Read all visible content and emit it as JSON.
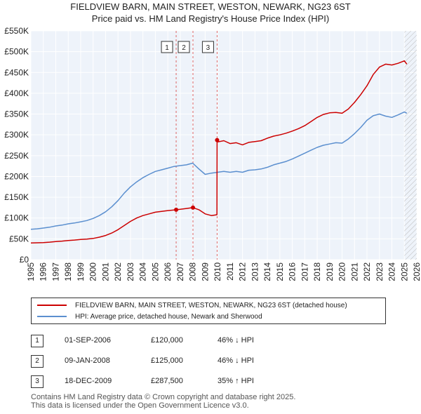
{
  "title_line1": "FIELDVIEW BARN, MAIN STREET, WESTON, NEWARK, NG23 6ST",
  "title_line2": "Price paid vs. HM Land Registry's House Price Index (HPI)",
  "chart_data": {
    "type": "line",
    "ylim": [
      0,
      550000
    ],
    "xlim": [
      1995,
      2026
    ],
    "yticks": [
      {
        "v": 0,
        "label": "£0"
      },
      {
        "v": 50000,
        "label": "£50K"
      },
      {
        "v": 100000,
        "label": "£100K"
      },
      {
        "v": 150000,
        "label": "£150K"
      },
      {
        "v": 200000,
        "label": "£200K"
      },
      {
        "v": 250000,
        "label": "£250K"
      },
      {
        "v": 300000,
        "label": "£300K"
      },
      {
        "v": 350000,
        "label": "£350K"
      },
      {
        "v": 400000,
        "label": "£400K"
      },
      {
        "v": 450000,
        "label": "£450K"
      },
      {
        "v": 500000,
        "label": "£500K"
      },
      {
        "v": 550000,
        "label": "£550K"
      }
    ],
    "xticks": [
      1995,
      1996,
      1997,
      1998,
      1999,
      2000,
      2001,
      2002,
      2003,
      2004,
      2005,
      2006,
      2007,
      2008,
      2009,
      2010,
      2011,
      2012,
      2013,
      2014,
      2015,
      2016,
      2017,
      2018,
      2019,
      2020,
      2021,
      2022,
      2023,
      2024,
      2025,
      2026
    ],
    "hatch_from": 2025.0,
    "series": [
      {
        "name": "FIELDVIEW BARN, MAIN STREET, WESTON, NEWARK, NG23 6ST (detached house)",
        "color": "#cc0000",
        "x": [
          1995.0,
          1995.5,
          1996.0,
          1996.5,
          1997.0,
          1997.5,
          1998.0,
          1998.5,
          1999.0,
          1999.5,
          2000.0,
          2000.5,
          2001.0,
          2001.5,
          2002.0,
          2002.5,
          2003.0,
          2003.5,
          2004.0,
          2004.5,
          2005.0,
          2005.5,
          2006.0,
          2006.5,
          2006.67,
          2007.0,
          2007.5,
          2008.0,
          2008.02,
          2008.5,
          2009.0,
          2009.5,
          2009.95,
          2009.96,
          2010.0,
          2010.5,
          2011.0,
          2011.5,
          2012.0,
          2012.5,
          2013.0,
          2013.5,
          2014.0,
          2014.5,
          2015.0,
          2015.5,
          2016.0,
          2016.5,
          2017.0,
          2017.5,
          2018.0,
          2018.5,
          2019.0,
          2019.5,
          2020.0,
          2020.5,
          2021.0,
          2021.5,
          2022.0,
          2022.5,
          2023.0,
          2023.5,
          2024.0,
          2024.5,
          2025.0,
          2025.2
        ],
        "y": [
          40000,
          40500,
          41000,
          42000,
          43500,
          44500,
          46000,
          47000,
          48500,
          49500,
          51000,
          54000,
          58000,
          64000,
          72000,
          82000,
          92000,
          100000,
          106000,
          110000,
          114000,
          116000,
          118000,
          119500,
          120000,
          121000,
          123000,
          125000,
          125000,
          120000,
          110000,
          106000,
          108000,
          287500,
          283000,
          286000,
          279000,
          281000,
          276000,
          282000,
          284000,
          286000,
          292000,
          297000,
          300000,
          304000,
          309000,
          315000,
          322000,
          332000,
          342000,
          349000,
          353000,
          354000,
          352000,
          362000,
          378000,
          397000,
          418000,
          445000,
          463000,
          470000,
          468000,
          472000,
          478000,
          470000
        ]
      },
      {
        "name": "HPI: Average price, detached house, Newark and Sherwood",
        "color": "#5b8fcf",
        "x": [
          1995.0,
          1995.5,
          1996.0,
          1996.5,
          1997.0,
          1997.5,
          1998.0,
          1998.5,
          1999.0,
          1999.5,
          2000.0,
          2000.5,
          2001.0,
          2001.5,
          2002.0,
          2002.5,
          2003.0,
          2003.5,
          2004.0,
          2004.5,
          2005.0,
          2005.5,
          2006.0,
          2006.5,
          2007.0,
          2007.5,
          2008.0,
          2008.5,
          2009.0,
          2009.5,
          2010.0,
          2010.5,
          2011.0,
          2011.5,
          2012.0,
          2012.5,
          2013.0,
          2013.5,
          2014.0,
          2014.5,
          2015.0,
          2015.5,
          2016.0,
          2016.5,
          2017.0,
          2017.5,
          2018.0,
          2018.5,
          2019.0,
          2019.5,
          2020.0,
          2020.5,
          2021.0,
          2021.5,
          2022.0,
          2022.5,
          2023.0,
          2023.5,
          2024.0,
          2024.5,
          2025.0,
          2025.2
        ],
        "y": [
          73000,
          74000,
          76000,
          78000,
          81000,
          83000,
          86000,
          88000,
          91000,
          94000,
          99000,
          106000,
          115000,
          127000,
          142000,
          160000,
          175000,
          187000,
          197000,
          205000,
          212000,
          216000,
          220000,
          224000,
          226000,
          228000,
          232000,
          218000,
          205000,
          208000,
          210000,
          212000,
          210000,
          212000,
          210000,
          215000,
          216000,
          218000,
          222000,
          228000,
          232000,
          236000,
          242000,
          249000,
          256000,
          263000,
          270000,
          275000,
          278000,
          281000,
          280000,
          290000,
          303000,
          318000,
          335000,
          346000,
          350000,
          345000,
          342000,
          348000,
          355000,
          352000
        ]
      }
    ],
    "markers": [
      {
        "label": "1",
        "x": 2006.67
      },
      {
        "label": "2",
        "x": 2008.02
      },
      {
        "label": "3",
        "x": 2009.96
      }
    ],
    "sale_points": [
      {
        "x": 2006.67,
        "y": 120000
      },
      {
        "x": 2008.02,
        "y": 125000
      },
      {
        "x": 2009.96,
        "y": 287500
      }
    ]
  },
  "legend": {
    "property_label": "FIELDVIEW BARN, MAIN STREET, WESTON, NEWARK, NG23 6ST (detached house)",
    "hpi_label": "HPI: Average price, detached house, Newark and Sherwood",
    "property_color": "#cc0000",
    "hpi_color": "#5b8fcf"
  },
  "transactions": [
    {
      "num": "1",
      "date": "01-SEP-2006",
      "price": "£120,000",
      "hpi": "46% ↓ HPI"
    },
    {
      "num": "2",
      "date": "09-JAN-2008",
      "price": "£125,000",
      "hpi": "46% ↓ HPI"
    },
    {
      "num": "3",
      "date": "18-DEC-2009",
      "price": "£287,500",
      "hpi": "35% ↑ HPI"
    }
  ],
  "footer_line1": "Contains HM Land Registry data © Crown copyright and database right 2025.",
  "footer_line2": "This data is licensed under the Open Government Licence v3.0."
}
